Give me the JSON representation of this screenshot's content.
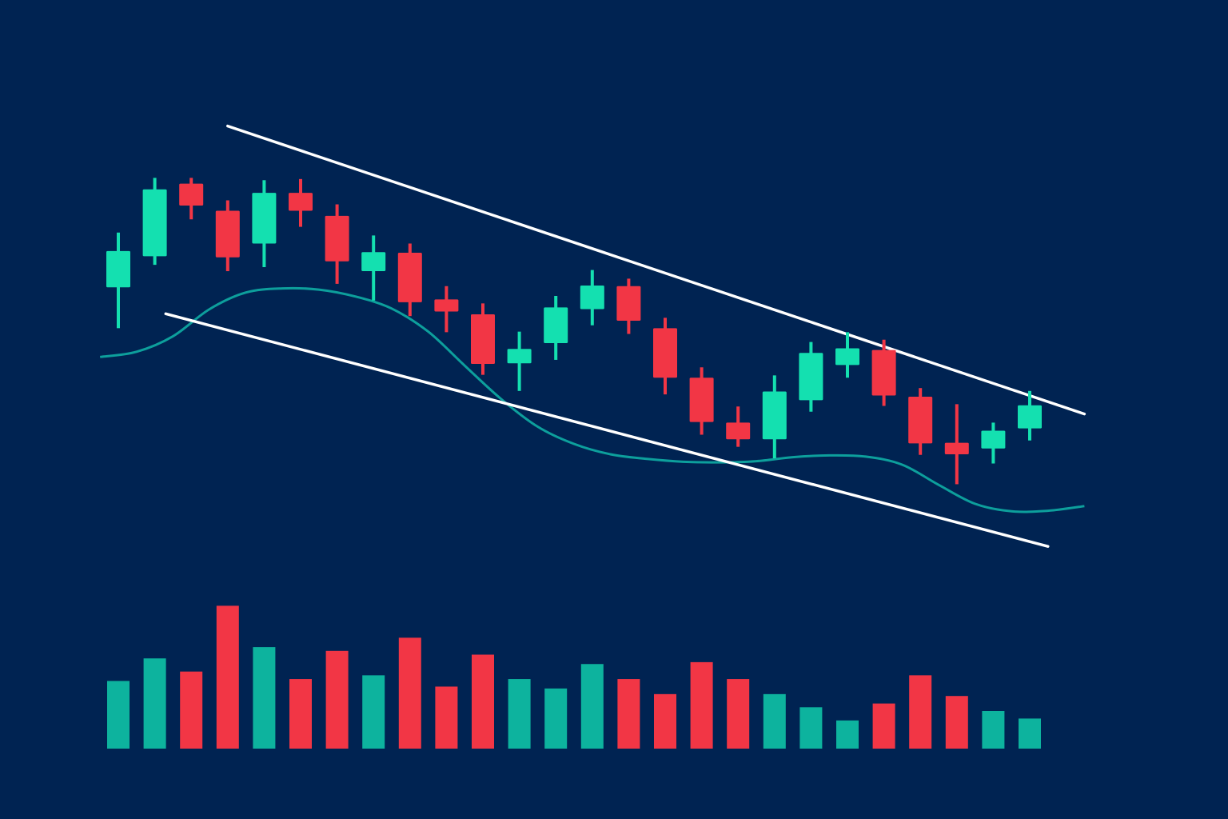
{
  "colors": {
    "background": "#002352",
    "bullish": "#14e0b0",
    "bearish": "#f23645",
    "volume_bullish": "#0db39e",
    "volume_bearish": "#f23645",
    "moving_average": "#0d9f9c",
    "channel_line": "#ffffff"
  },
  "chart_data": {
    "type": "candlestick",
    "title": "",
    "xlabel": "",
    "ylabel": "",
    "ylim": [
      0,
      100
    ],
    "volume_ylim": [
      0,
      100
    ],
    "grid": false,
    "legend": "none",
    "candles": [
      {
        "i": 0,
        "open": 64.0,
        "high": 73.5,
        "low": 56.9,
        "close": 70.3
      },
      {
        "i": 1,
        "open": 69.4,
        "high": 83.0,
        "low": 67.9,
        "close": 81.0
      },
      {
        "i": 2,
        "open": 82.0,
        "high": 83.0,
        "low": 75.8,
        "close": 78.2
      },
      {
        "i": 3,
        "open": 77.3,
        "high": 79.1,
        "low": 66.8,
        "close": 69.2
      },
      {
        "i": 4,
        "open": 71.6,
        "high": 82.6,
        "low": 67.5,
        "close": 80.4
      },
      {
        "i": 5,
        "open": 80.4,
        "high": 82.8,
        "low": 74.5,
        "close": 77.3
      },
      {
        "i": 6,
        "open": 76.4,
        "high": 78.4,
        "low": 64.6,
        "close": 68.5
      },
      {
        "i": 7,
        "open": 66.8,
        "high": 73.0,
        "low": 61.7,
        "close": 70.1
      },
      {
        "i": 8,
        "open": 70.0,
        "high": 71.6,
        "low": 59.0,
        "close": 61.4
      },
      {
        "i": 9,
        "open": 61.9,
        "high": 64.2,
        "low": 56.2,
        "close": 59.8
      },
      {
        "i": 10,
        "open": 59.3,
        "high": 61.2,
        "low": 48.8,
        "close": 50.7
      },
      {
        "i": 11,
        "open": 50.8,
        "high": 56.3,
        "low": 46.0,
        "close": 53.3
      },
      {
        "i": 12,
        "open": 54.3,
        "high": 62.5,
        "low": 51.4,
        "close": 60.5
      },
      {
        "i": 13,
        "open": 60.2,
        "high": 67.0,
        "low": 57.4,
        "close": 64.3
      },
      {
        "i": 14,
        "open": 64.2,
        "high": 65.5,
        "low": 55.9,
        "close": 58.2
      },
      {
        "i": 15,
        "open": 56.9,
        "high": 58.7,
        "low": 45.4,
        "close": 48.3
      },
      {
        "i": 16,
        "open": 48.3,
        "high": 50.1,
        "low": 38.4,
        "close": 40.6
      },
      {
        "i": 17,
        "open": 40.5,
        "high": 43.3,
        "low": 36.3,
        "close": 37.6
      },
      {
        "i": 18,
        "open": 37.6,
        "high": 48.7,
        "low": 34.3,
        "close": 45.9
      },
      {
        "i": 19,
        "open": 44.4,
        "high": 54.5,
        "low": 42.4,
        "close": 52.6
      },
      {
        "i": 20,
        "open": 50.5,
        "high": 56.2,
        "low": 48.3,
        "close": 53.4
      },
      {
        "i": 21,
        "open": 53.1,
        "high": 54.9,
        "low": 43.4,
        "close": 45.2
      },
      {
        "i": 22,
        "open": 45.0,
        "high": 46.5,
        "low": 34.9,
        "close": 36.9
      },
      {
        "i": 23,
        "open": 37.0,
        "high": 43.7,
        "low": 29.8,
        "close": 35.0
      },
      {
        "i": 24,
        "open": 36.0,
        "high": 40.5,
        "low": 33.4,
        "close": 39.1
      },
      {
        "i": 25,
        "open": 39.5,
        "high": 46.0,
        "low": 37.4,
        "close": 43.5
      }
    ],
    "volume": [
      36,
      48,
      41,
      76,
      54,
      37,
      52,
      39,
      59,
      33,
      50,
      37,
      32,
      45,
      37,
      29,
      46,
      37,
      29,
      22,
      15,
      24,
      39,
      28,
      20,
      16
    ],
    "moving_average": [
      [
        -0.5,
        51.9
      ],
      [
        0.5,
        52.8
      ],
      [
        1.5,
        55.5
      ],
      [
        2.5,
        60.2
      ],
      [
        3.5,
        63.1
      ],
      [
        4.5,
        63.8
      ],
      [
        5.5,
        63.6
      ],
      [
        6.5,
        62.4
      ],
      [
        7.5,
        60.3
      ],
      [
        8.5,
        56.3
      ],
      [
        9.5,
        50.4
      ],
      [
        10.5,
        44.6
      ],
      [
        11.5,
        39.8
      ],
      [
        12.5,
        36.8
      ],
      [
        13.5,
        35.0
      ],
      [
        14.5,
        34.2
      ],
      [
        15.5,
        33.7
      ],
      [
        16.5,
        33.6
      ],
      [
        17.5,
        33.8
      ],
      [
        18.5,
        34.5
      ],
      [
        19.5,
        34.8
      ],
      [
        20.5,
        34.6
      ],
      [
        21.5,
        33.2
      ],
      [
        22.5,
        29.7
      ],
      [
        23.5,
        26.4
      ],
      [
        24.5,
        25.1
      ],
      [
        25.5,
        25.2
      ],
      [
        26.5,
        26.0
      ]
    ],
    "channel": {
      "upper": [
        [
          3.0,
          92.0
        ],
        [
          26.5,
          42.0
        ]
      ],
      "lower": [
        [
          1.3,
          59.4
        ],
        [
          25.5,
          19.0
        ]
      ]
    }
  }
}
